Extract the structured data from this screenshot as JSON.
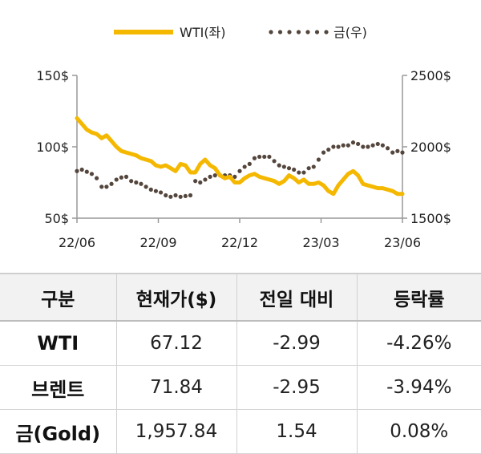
{
  "chart_data": {
    "type": "line",
    "x_tick_labels": [
      "22/06",
      "22/09",
      "22/12",
      "23/03",
      "23/06"
    ],
    "x_range": [
      "2022-06",
      "2023-06"
    ],
    "y_left": {
      "ticks": [
        "50$",
        "100$",
        "150$"
      ],
      "range": [
        50,
        150
      ]
    },
    "y_right": {
      "ticks": [
        "1500$",
        "2000$",
        "2500$"
      ],
      "range": [
        1500,
        2500
      ]
    },
    "legend_position": "top-center",
    "grid": false,
    "series": [
      {
        "name": "WTI(좌)",
        "axis": "left",
        "style": "solid",
        "color": "#f5b800",
        "values": [
          120,
          116,
          112,
          110,
          109,
          106,
          108,
          104,
          100,
          97,
          96,
          95,
          94,
          92,
          91,
          90,
          87,
          86,
          87,
          85,
          83,
          88,
          87,
          82,
          82,
          88,
          91,
          87,
          85,
          80,
          78,
          79,
          75,
          75,
          78,
          80,
          81,
          79,
          78,
          77,
          76,
          74,
          76,
          80,
          78,
          75,
          77,
          74,
          74,
          75,
          73,
          69,
          67,
          73,
          77,
          81,
          83,
          80,
          74,
          73,
          72,
          71,
          71,
          70,
          69,
          67,
          67
        ]
      },
      {
        "name": "금(우)",
        "axis": "right",
        "style": "dotted",
        "color": "#54463d",
        "values": [
          1830,
          1840,
          1825,
          1810,
          1780,
          1720,
          1720,
          1740,
          1770,
          1785,
          1790,
          1760,
          1750,
          1740,
          1720,
          1700,
          1690,
          1680,
          1660,
          1650,
          1660,
          1650,
          1655,
          1660,
          1760,
          1750,
          1770,
          1790,
          1800,
          1800,
          1800,
          1800,
          1790,
          1830,
          1860,
          1880,
          1920,
          1930,
          1930,
          1930,
          1900,
          1870,
          1860,
          1850,
          1840,
          1820,
          1820,
          1850,
          1860,
          1910,
          1960,
          1980,
          2000,
          2000,
          2010,
          2010,
          2030,
          2020,
          2000,
          2000,
          2010,
          2020,
          2010,
          1990,
          1960,
          1970,
          1960
        ]
      }
    ]
  },
  "table": {
    "headers": [
      "구분",
      "현재가($)",
      "전일 대비",
      "등락률"
    ],
    "rows": [
      [
        "WTI",
        "67.12",
        "-2.99",
        "-4.26%"
      ],
      [
        "브렌트",
        "71.84",
        "-2.95",
        "-3.94%"
      ],
      [
        "금(Gold)",
        "1,957.84",
        "1.54",
        "0.08%"
      ]
    ]
  }
}
